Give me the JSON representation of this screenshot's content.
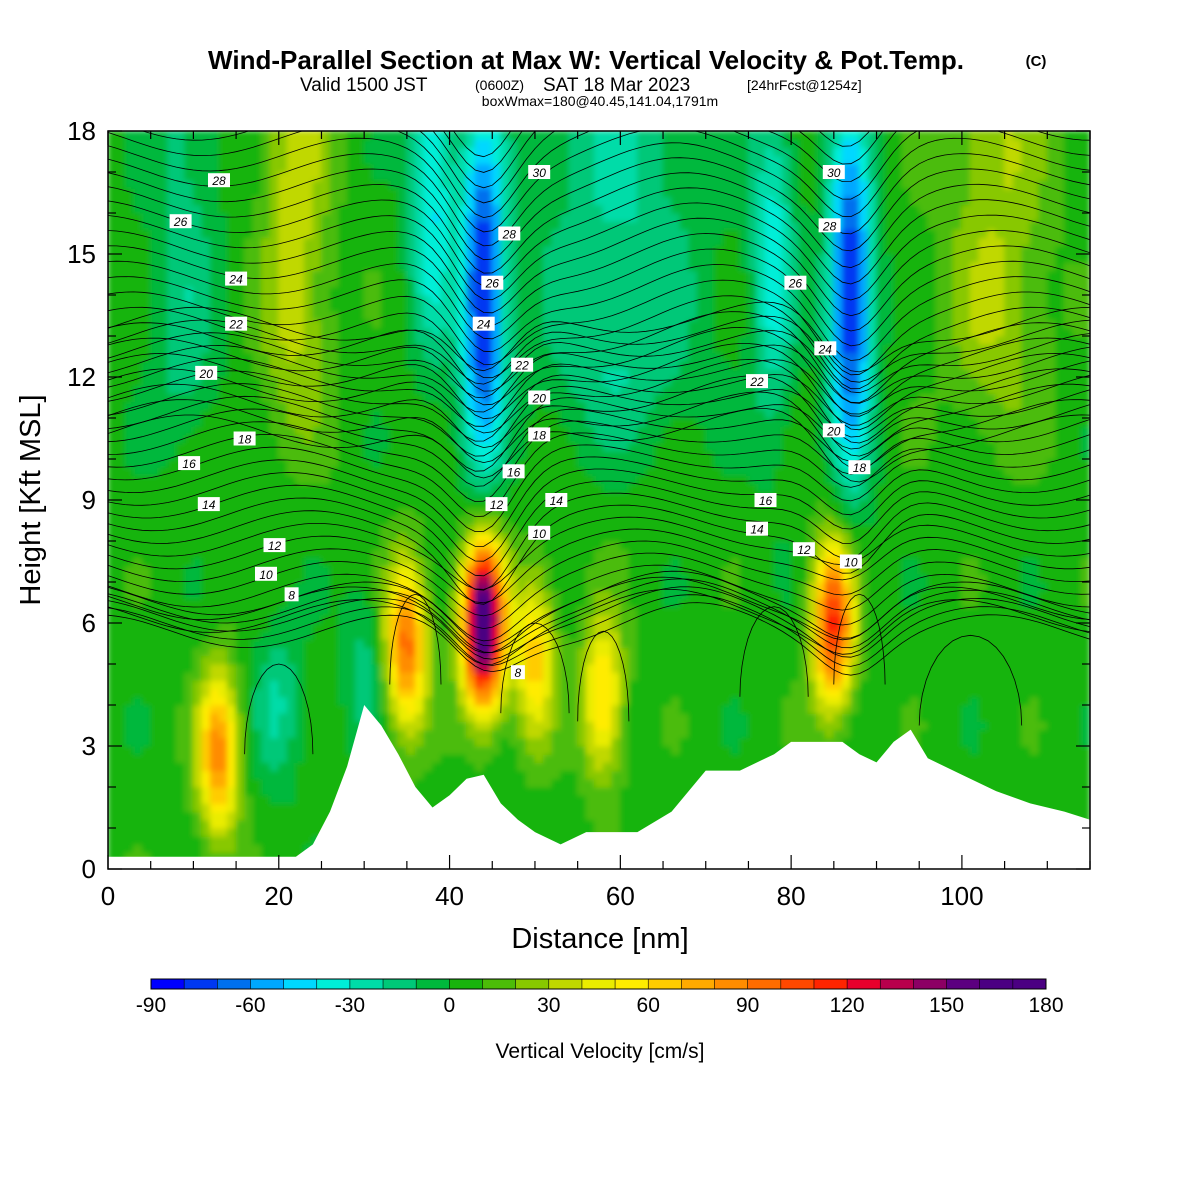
{
  "title": {
    "main": "Wind-Parallel Section at Max W: Vertical Velocity & Pot.Temp.",
    "copyright": "(C)",
    "valid_prefix": "Valid 1500 JST",
    "valid_utc": "(0600Z)",
    "valid_date": "SAT 18 Mar 2023",
    "forecast": "[24hrFcst@1254z]",
    "box": "boxWmax=180@40.45,141.04,1791m"
  },
  "chart_data": {
    "type": "heatmap",
    "xlabel": "Distance [nm]",
    "ylabel": "Height [Kft MSL]",
    "xlim": [
      0,
      115
    ],
    "ylim": [
      0,
      18
    ],
    "xticks": [
      0,
      20,
      40,
      60,
      80,
      100
    ],
    "yticks": [
      0,
      3,
      6,
      9,
      12,
      15,
      18
    ],
    "colorbar": {
      "label": "Vertical Velocity [cm/s]",
      "min": -90,
      "max": 180,
      "step": 10,
      "ticks": [
        -90,
        -60,
        -30,
        0,
        30,
        60,
        90,
        120,
        150,
        180
      ],
      "colors": [
        "#0000ff",
        "#0038f2",
        "#0070ee",
        "#00a8ff",
        "#00d8ff",
        "#00eed8",
        "#00dca8",
        "#00c878",
        "#00b83c",
        "#18b40c",
        "#4cbc08",
        "#88c800",
        "#c0d800",
        "#eaec00",
        "#ffec00",
        "#ffcc00",
        "#ffaa00",
        "#ff8c00",
        "#ff6c00",
        "#ff4800",
        "#ff2400",
        "#e8002c",
        "#b8004c",
        "#8c0064",
        "#5c0080",
        "#4b0082",
        "#4b0082"
      ]
    },
    "updraft_peaks": [
      {
        "x": 13,
        "height": 2.8,
        "w": 80
      },
      {
        "x": 35,
        "height": 5.5,
        "w": 90
      },
      {
        "x": 44,
        "height": 6.0,
        "w": 180
      },
      {
        "x": 50,
        "height": 5.2,
        "w": 60
      },
      {
        "x": 58,
        "height": 4.2,
        "w": 60
      },
      {
        "x": 85,
        "height": 6.0,
        "w": 110
      }
    ],
    "downdraft_peaks": [
      {
        "x": 44,
        "height": 14.0,
        "w": -90
      },
      {
        "x": 87,
        "height": 14.0,
        "w": -90
      },
      {
        "x": 38,
        "height": 17.0,
        "w": -50
      },
      {
        "x": 78,
        "height": 15.0,
        "w": -40
      }
    ],
    "terrain": [
      {
        "x": 0,
        "height": 0.3
      },
      {
        "x": 18,
        "height": 0.3
      },
      {
        "x": 22,
        "height": 0.3
      },
      {
        "x": 24,
        "height": 0.6
      },
      {
        "x": 26,
        "height": 1.4
      },
      {
        "x": 28,
        "height": 2.5
      },
      {
        "x": 30,
        "height": 4.0
      },
      {
        "x": 32,
        "height": 3.5
      },
      {
        "x": 34,
        "height": 2.8
      },
      {
        "x": 36,
        "height": 2.0
      },
      {
        "x": 38,
        "height": 1.5
      },
      {
        "x": 40,
        "height": 1.8
      },
      {
        "x": 42,
        "height": 2.2
      },
      {
        "x": 44,
        "height": 2.3
      },
      {
        "x": 46,
        "height": 1.6
      },
      {
        "x": 48,
        "height": 1.2
      },
      {
        "x": 50,
        "height": 0.9
      },
      {
        "x": 53,
        "height": 0.6
      },
      {
        "x": 56,
        "height": 0.9
      },
      {
        "x": 62,
        "height": 0.9
      },
      {
        "x": 66,
        "height": 1.4
      },
      {
        "x": 70,
        "height": 2.4
      },
      {
        "x": 74,
        "height": 2.4
      },
      {
        "x": 78,
        "height": 2.8
      },
      {
        "x": 80,
        "height": 3.1
      },
      {
        "x": 86,
        "height": 3.1
      },
      {
        "x": 88,
        "height": 2.8
      },
      {
        "x": 90,
        "height": 2.6
      },
      {
        "x": 92,
        "height": 3.1
      },
      {
        "x": 94,
        "height": 3.4
      },
      {
        "x": 96,
        "height": 2.7
      },
      {
        "x": 100,
        "height": 2.3
      },
      {
        "x": 104,
        "height": 1.9
      },
      {
        "x": 108,
        "height": 1.6
      },
      {
        "x": 112,
        "height": 1.4
      },
      {
        "x": 115,
        "height": 1.2
      }
    ],
    "theta_contours": {
      "levels": [
        8,
        10,
        12,
        14,
        16,
        18,
        20,
        22,
        24,
        26,
        28,
        30
      ],
      "labels": [
        {
          "text": "28",
          "x": 13,
          "height": 16.8
        },
        {
          "text": "26",
          "x": 8.5,
          "height": 15.8
        },
        {
          "text": "24",
          "x": 15,
          "height": 14.4
        },
        {
          "text": "22",
          "x": 15,
          "height": 13.3
        },
        {
          "text": "20",
          "x": 11.5,
          "height": 12.1
        },
        {
          "text": "18",
          "x": 16,
          "height": 10.5
        },
        {
          "text": "16",
          "x": 9.5,
          "height": 9.9
        },
        {
          "text": "14",
          "x": 11.8,
          "height": 8.9
        },
        {
          "text": "12",
          "x": 19.5,
          "height": 7.9
        },
        {
          "text": "10",
          "x": 18.5,
          "height": 7.2
        },
        {
          "text": "8",
          "x": 21.5,
          "height": 6.7
        },
        {
          "text": "30",
          "x": 50.5,
          "height": 17.0
        },
        {
          "text": "28",
          "x": 47,
          "height": 15.5
        },
        {
          "text": "26",
          "x": 45,
          "height": 14.3
        },
        {
          "text": "24",
          "x": 44,
          "height": 13.3
        },
        {
          "text": "22",
          "x": 48.5,
          "height": 12.3
        },
        {
          "text": "20",
          "x": 50.5,
          "height": 11.5
        },
        {
          "text": "18",
          "x": 50.5,
          "height": 10.6
        },
        {
          "text": "16",
          "x": 47.5,
          "height": 9.7
        },
        {
          "text": "14",
          "x": 52.5,
          "height": 9.0
        },
        {
          "text": "12",
          "x": 45.5,
          "height": 8.9
        },
        {
          "text": "10",
          "x": 50.5,
          "height": 8.2
        },
        {
          "text": "8",
          "x": 48,
          "height": 4.8
        },
        {
          "text": "30",
          "x": 85,
          "height": 17.0
        },
        {
          "text": "28",
          "x": 84.5,
          "height": 15.7
        },
        {
          "text": "26",
          "x": 80.5,
          "height": 14.3
        },
        {
          "text": "24",
          "x": 84,
          "height": 12.7
        },
        {
          "text": "22",
          "x": 76,
          "height": 11.9
        },
        {
          "text": "20",
          "x": 85,
          "height": 10.7
        },
        {
          "text": "18",
          "x": 88,
          "height": 9.8
        },
        {
          "text": "16",
          "x": 77,
          "height": 9.0
        },
        {
          "text": "14",
          "x": 76,
          "height": 8.3
        },
        {
          "text": "12",
          "x": 81.5,
          "height": 7.8
        },
        {
          "text": "10",
          "x": 87,
          "height": 7.5
        }
      ]
    }
  }
}
